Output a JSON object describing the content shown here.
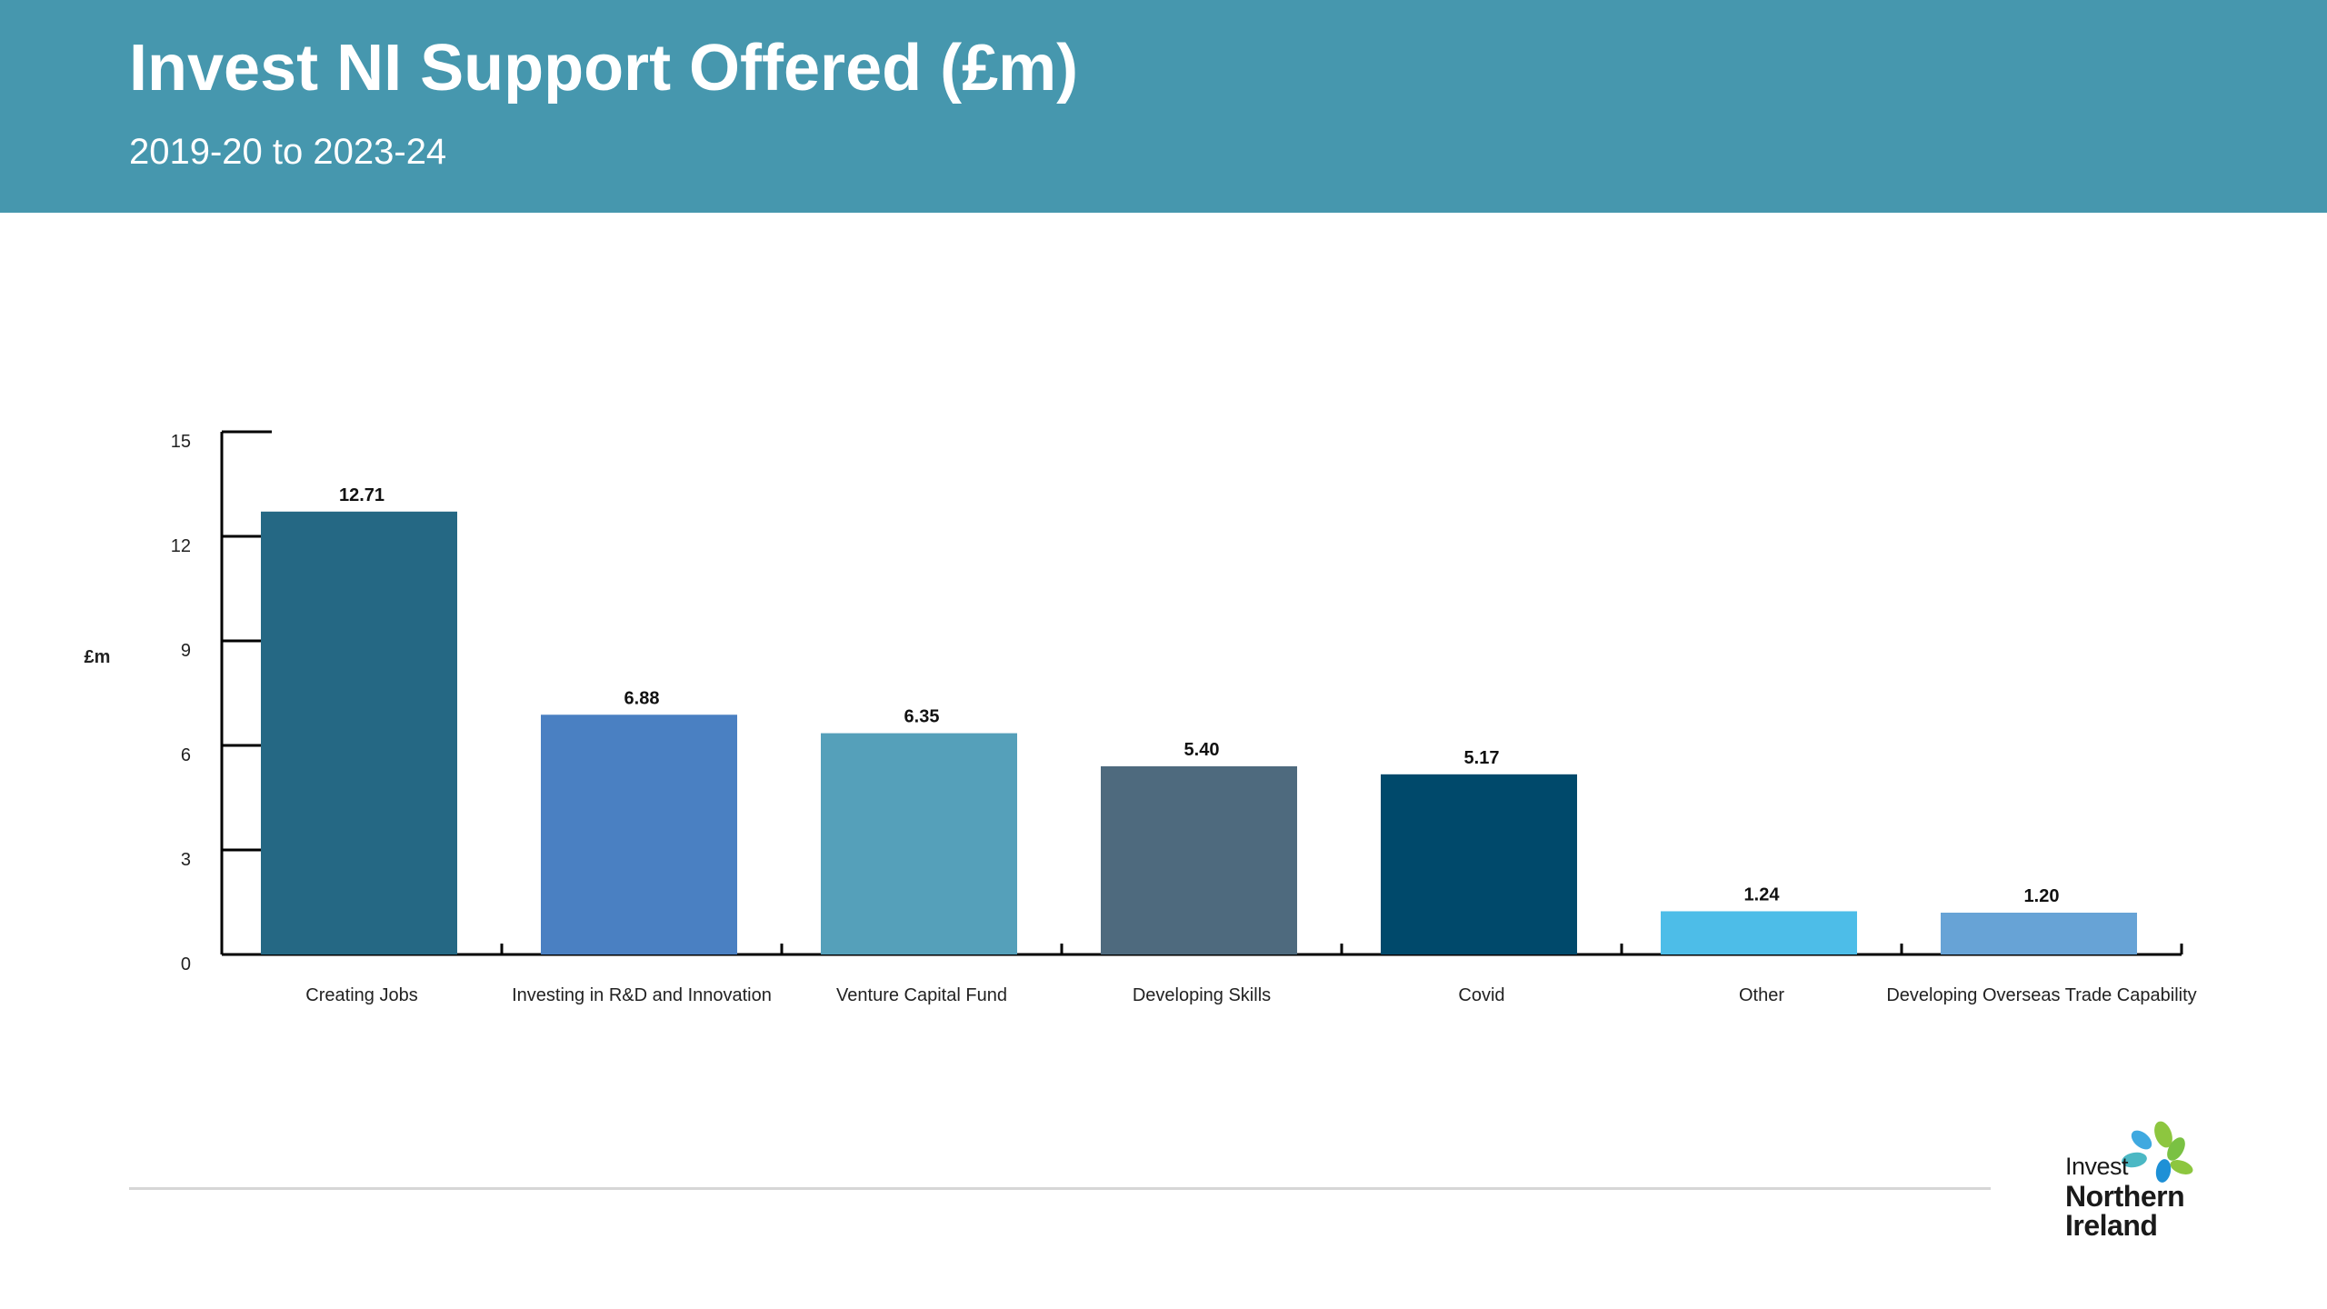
{
  "header": {
    "title": "Invest NI Support Offered (£m)",
    "subtitle": "2019-20 to 2023-24"
  },
  "colors": {
    "header_bg": "#4697AE",
    "axis": "#000000",
    "footer_rule": "#d6d6d6"
  },
  "logo": {
    "line1": "Invest",
    "line2": "Northern",
    "line3": "Ireland",
    "petal_colors": [
      "#8DC63F",
      "#3FA9E0",
      "#4BB8C4",
      "#1E90D6",
      "#7AC143"
    ]
  },
  "chart_data": {
    "type": "bar",
    "title": "",
    "ylabel": "£m",
    "xlabel": "",
    "ylim": [
      0,
      15
    ],
    "yticks": [
      0,
      3,
      6,
      9,
      12,
      15
    ],
    "grid": false,
    "categories": [
      "Creating Jobs",
      "Investing in R&D and Innovation",
      "Venture Capital Fund",
      "Developing Skills",
      "Covid",
      "Other",
      "Developing Overseas Trade Capability"
    ],
    "values": [
      12.71,
      6.88,
      6.35,
      5.4,
      5.17,
      1.24,
      1.2
    ],
    "value_labels": [
      "12.71",
      "6.88",
      "6.35",
      "5.40",
      "5.17",
      "1.24",
      "1.20"
    ],
    "colors": [
      "#256884",
      "#4A80C2",
      "#55A0BA",
      "#4E6A7E",
      "#00496B",
      "#4DBDE8",
      "#67A3D6"
    ]
  }
}
